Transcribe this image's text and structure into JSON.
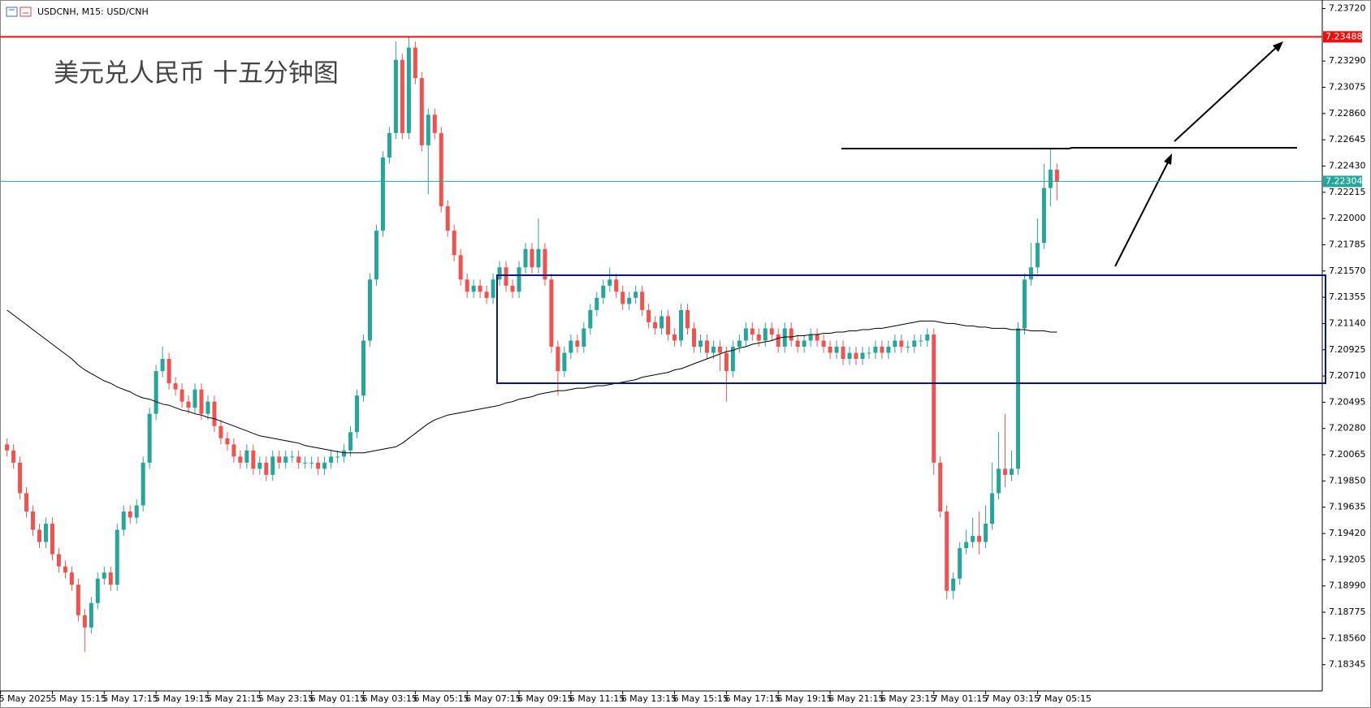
{
  "chart_data": {
    "type": "candlestick",
    "header": "USDCNH, M15:  USD/CNH",
    "title": "美元兑人民币 十五分钟图",
    "up_color": "#26a69a",
    "down_color": "#ef5350",
    "ylim": [
      7.1813,
      7.2377
    ],
    "yticks": [
      {
        "value": 7.2372,
        "label": "7.23720"
      },
      {
        "value": 7.2329,
        "label": "7.23290"
      },
      7.23075,
      {
        "value": 7.2286,
        "label": "7.22860"
      },
      7.22645,
      {
        "value": 7.2243,
        "label": "7.22430"
      },
      7.22215,
      {
        "value": 7.22,
        "label": "7.22000"
      },
      7.21785,
      {
        "value": 7.2157,
        "label": "7.21570"
      },
      7.21355,
      {
        "value": 7.2114,
        "label": "7.21140"
      },
      7.20925,
      {
        "value": 7.2071,
        "label": "7.20710"
      },
      7.20495,
      {
        "value": 7.2028,
        "label": "7.20280"
      },
      7.20065,
      {
        "value": 7.1985,
        "label": "7.19850"
      },
      7.19635,
      {
        "value": 7.1942,
        "label": "7.19420"
      },
      7.19205,
      {
        "value": 7.1899,
        "label": "7.18990"
      },
      7.18775,
      {
        "value": 7.1856,
        "label": "7.18560"
      },
      7.18345
    ],
    "hlines": [
      {
        "value": 7.23488,
        "color": "#e81010"
      },
      {
        "value": 7.22304,
        "color": "#26a69a"
      }
    ],
    "xlabels": [
      "5 May 2025",
      "5 May 15:15",
      "5 May 17:15",
      "5 May 19:15",
      "5 May 21:15",
      "5 May 23:15",
      "6 May 01:15",
      "6 May 03:15",
      "6 May 05:15",
      "6 May 07:15",
      "6 May 09:15",
      "6 May 11:15",
      "6 May 13:15",
      "6 May 15:15",
      "6 May 17:15",
      "6 May 19:15",
      "6 May 21:15",
      "6 May 23:15",
      "7 May 01:15",
      "7 May 03:15",
      "7 May 05:15"
    ],
    "open": [
      7.2015,
      7.201,
      7.2,
      7.1975,
      7.196,
      7.1945,
      7.1935,
      7.195,
      7.1925,
      7.1915,
      7.191,
      7.19,
      7.1875,
      7.1865,
      7.1885,
      7.1905,
      7.191,
      7.19,
      7.1945,
      7.196,
      7.1955,
      7.1965,
      7.2,
      7.204,
      7.2075,
      7.2085,
      7.2065,
      7.206,
      7.205,
      7.2045,
      7.206,
      7.204,
      7.205,
      7.203,
      7.202,
      7.2015,
      7.2005,
      7.2,
      7.201,
      7.1995,
      7.2,
      7.199,
      7.2005,
      7.2,
      7.2005,
      7.2005,
      7.2,
      7.2,
      7.2,
      7.1995,
      7.2,
      7.2005,
      7.2005,
      7.201,
      7.2025,
      7.2055,
      7.21,
      7.215,
      7.219,
      7.225,
      7.227,
      7.233,
      7.227,
      7.234,
      7.2315,
      7.226,
      7.2285,
      7.227,
      7.221,
      7.219,
      7.217,
      7.215,
      7.214,
      7.2145,
      7.214,
      7.2135,
      7.215,
      7.216,
      7.2145,
      7.214,
      7.216,
      7.2175,
      7.216,
      7.2175,
      7.215,
      7.2095,
      7.2075,
      7.209,
      7.21,
      7.2095,
      7.211,
      7.2125,
      7.2135,
      7.2145,
      7.215,
      7.214,
      7.213,
      7.2135,
      7.214,
      7.2125,
      7.2115,
      7.211,
      7.212,
      7.2105,
      7.21,
      7.2125,
      7.211,
      7.2095,
      7.21,
      7.209,
      7.2095,
      7.209,
      7.2075,
      7.2095,
      7.21,
      7.211,
      7.2105,
      7.21,
      7.211,
      7.2105,
      7.2095,
      7.211,
      7.21,
      7.2095,
      7.21,
      7.2105,
      7.21,
      7.2095,
      7.209,
      7.2095,
      7.2085,
      7.209,
      7.2085,
      7.209,
      7.209,
      7.2095,
      7.209,
      7.2095,
      7.21,
      7.2095,
      7.2095,
      7.21,
      7.21,
      7.2105,
      7.2,
      7.196,
      7.1895,
      7.1905,
      7.193,
      7.1935,
      7.194,
      7.1935,
      7.195,
      7.1975,
      7.1995,
      7.199,
      7.1995,
      7.211,
      7.215,
      7.216,
      7.218,
      7.2225,
      7.224
    ],
    "high": [
      7.202,
      7.2015,
      7.2005,
      7.198,
      7.1965,
      7.195,
      7.1955,
      7.1955,
      7.193,
      7.192,
      7.1915,
      7.1905,
      7.188,
      7.189,
      7.191,
      7.1915,
      7.1915,
      7.195,
      7.1965,
      7.1965,
      7.197,
      7.2005,
      7.2045,
      7.208,
      7.2095,
      7.209,
      7.207,
      7.2065,
      7.2055,
      7.2065,
      7.2065,
      7.2055,
      7.2055,
      7.2035,
      7.2025,
      7.202,
      7.201,
      7.2015,
      7.2015,
      7.2005,
      7.2005,
      7.201,
      7.201,
      7.201,
      7.201,
      7.201,
      7.2005,
      7.2005,
      7.2005,
      7.2005,
      7.201,
      7.201,
      7.2015,
      7.203,
      7.206,
      7.2105,
      7.2155,
      7.2195,
      7.2255,
      7.2275,
      7.2345,
      7.2335,
      7.2349,
      7.2345,
      7.232,
      7.229,
      7.229,
      7.2275,
      7.2215,
      7.2195,
      7.2175,
      7.2155,
      7.215,
      7.215,
      7.2145,
      7.2155,
      7.2165,
      7.2165,
      7.215,
      7.2165,
      7.218,
      7.218,
      7.22,
      7.218,
      7.2155,
      7.21,
      7.2095,
      7.2105,
      7.2105,
      7.2115,
      7.213,
      7.214,
      7.215,
      7.216,
      7.2155,
      7.2145,
      7.214,
      7.2145,
      7.2145,
      7.213,
      7.212,
      7.2125,
      7.2125,
      7.211,
      7.213,
      7.213,
      7.2115,
      7.2105,
      7.2105,
      7.21,
      7.21,
      7.2095,
      7.21,
      7.2105,
      7.2115,
      7.2115,
      7.211,
      7.2115,
      7.2115,
      7.211,
      7.2115,
      7.2115,
      7.2105,
      7.2105,
      7.211,
      7.211,
      7.2105,
      7.21,
      7.21,
      7.21,
      7.2095,
      7.2095,
      7.2095,
      7.2095,
      7.21,
      7.21,
      7.21,
      7.2105,
      7.2105,
      7.21,
      7.2105,
      7.2105,
      7.211,
      7.211,
      7.2005,
      7.1965,
      7.191,
      7.1935,
      7.1945,
      7.1955,
      7.196,
      7.1965,
      7.2,
      7.2025,
      7.204,
      7.201,
      7.2115,
      7.2155,
      7.218,
      7.22,
      7.2245,
      7.2258,
      7.2245
    ],
    "low": [
      7.2005,
      7.1995,
      7.197,
      7.1955,
      7.194,
      7.193,
      7.193,
      7.192,
      7.191,
      7.1905,
      7.1895,
      7.187,
      7.1845,
      7.186,
      7.188,
      7.19,
      7.1895,
      7.1895,
      7.194,
      7.195,
      7.195,
      7.196,
      7.1995,
      7.2035,
      7.207,
      7.206,
      7.2055,
      7.2045,
      7.204,
      7.204,
      7.2035,
      7.2035,
      7.2025,
      7.2015,
      7.201,
      7.2,
      7.1995,
      7.1995,
      7.199,
      7.199,
      7.1985,
      7.1985,
      7.1995,
      7.1995,
      7.2,
      7.1995,
      7.1995,
      7.1995,
      7.199,
      7.199,
      7.1995,
      7.2,
      7.2,
      7.2005,
      7.202,
      7.205,
      7.2095,
      7.2145,
      7.2185,
      7.2245,
      7.2265,
      7.2265,
      7.2265,
      7.231,
      7.2255,
      7.222,
      7.2265,
      7.2205,
      7.2185,
      7.2165,
      7.2145,
      7.2135,
      7.2135,
      7.2135,
      7.213,
      7.213,
      7.2145,
      7.214,
      7.2135,
      7.2135,
      7.2155,
      7.2155,
      7.2155,
      7.2145,
      7.209,
      7.2055,
      7.207,
      7.2085,
      7.209,
      7.209,
      7.2105,
      7.212,
      7.213,
      7.214,
      7.2135,
      7.2125,
      7.2125,
      7.213,
      7.212,
      7.211,
      7.2105,
      7.2105,
      7.21,
      7.2095,
      7.2095,
      7.2105,
      7.209,
      7.209,
      7.2085,
      7.2085,
      7.2075,
      7.205,
      7.207,
      7.209,
      7.2095,
      7.21,
      7.2095,
      7.2095,
      7.21,
      7.209,
      7.209,
      7.2095,
      7.209,
      7.209,
      7.2095,
      7.2095,
      7.209,
      7.2085,
      7.2085,
      7.208,
      7.208,
      7.208,
      7.208,
      7.2085,
      7.2085,
      7.2085,
      7.2085,
      7.209,
      7.209,
      7.209,
      7.209,
      7.2095,
      7.2095,
      7.199,
      7.1955,
      7.1888,
      7.1888,
      7.19,
      7.1925,
      7.193,
      7.1925,
      7.193,
      7.1945,
      7.197,
      7.198,
      7.1985,
      7.199,
      7.2105,
      7.2145,
      7.2155,
      7.2175,
      7.221,
      7.2215
    ],
    "close": [
      7.201,
      7.2,
      7.1975,
      7.196,
      7.1945,
      7.1935,
      7.195,
      7.1925,
      7.1915,
      7.191,
      7.19,
      7.1875,
      7.1865,
      7.1885,
      7.1905,
      7.191,
      7.19,
      7.1945,
      7.196,
      7.1955,
      7.1965,
      7.2,
      7.204,
      7.2075,
      7.2085,
      7.2065,
      7.206,
      7.205,
      7.2045,
      7.206,
      7.204,
      7.205,
      7.203,
      7.202,
      7.2015,
      7.2005,
      7.2,
      7.201,
      7.1995,
      7.2,
      7.199,
      7.2005,
      7.2,
      7.2005,
      7.2005,
      7.2,
      7.2,
      7.2,
      7.1995,
      7.2,
      7.2005,
      7.2005,
      7.201,
      7.2025,
      7.2055,
      7.21,
      7.215,
      7.219,
      7.225,
      7.227,
      7.233,
      7.227,
      7.234,
      7.2315,
      7.226,
      7.2285,
      7.227,
      7.221,
      7.219,
      7.217,
      7.215,
      7.214,
      7.2145,
      7.214,
      7.2135,
      7.215,
      7.216,
      7.2145,
      7.214,
      7.216,
      7.2175,
      7.216,
      7.2175,
      7.215,
      7.2095,
      7.2075,
      7.209,
      7.21,
      7.2095,
      7.211,
      7.2125,
      7.2135,
      7.2145,
      7.215,
      7.214,
      7.213,
      7.2135,
      7.214,
      7.2125,
      7.2115,
      7.211,
      7.212,
      7.2105,
      7.21,
      7.2125,
      7.211,
      7.2095,
      7.21,
      7.209,
      7.2095,
      7.209,
      7.2075,
      7.2095,
      7.21,
      7.211,
      7.2105,
      7.21,
      7.211,
      7.2105,
      7.2095,
      7.211,
      7.21,
      7.2095,
      7.21,
      7.2105,
      7.21,
      7.2095,
      7.209,
      7.2095,
      7.2085,
      7.209,
      7.2085,
      7.209,
      7.209,
      7.2095,
      7.209,
      7.2095,
      7.21,
      7.2095,
      7.2095,
      7.21,
      7.21,
      7.2105,
      7.2,
      7.196,
      7.1895,
      7.1905,
      7.193,
      7.1935,
      7.194,
      7.1935,
      7.195,
      7.1975,
      7.1995,
      7.199,
      7.1995,
      7.211,
      7.215,
      7.216,
      7.218,
      7.2225,
      7.224,
      7.223
    ],
    "ma": {
      "color": "#000000",
      "values": [
        7.2125,
        7.2121,
        7.2117,
        7.2113,
        7.2109,
        7.2105,
        7.2101,
        7.2097,
        7.2093,
        7.2089,
        7.2085,
        7.208,
        7.2076,
        7.2073,
        7.207,
        7.2067,
        7.2065,
        7.2062,
        7.206,
        7.2058,
        7.2055,
        7.2053,
        7.2052,
        7.205,
        7.2048,
        7.2047,
        7.2045,
        7.2043,
        7.2042,
        7.204,
        7.2039,
        7.2037,
        7.2036,
        7.2034,
        7.2032,
        7.203,
        7.2028,
        7.2026,
        7.2024,
        7.2022,
        7.2021,
        7.202,
        7.2019,
        7.2018,
        7.2017,
        7.2016,
        7.2014,
        7.2013,
        7.2012,
        7.2011,
        7.201,
        7.2009,
        7.2008,
        7.2008,
        7.2008,
        7.2008,
        7.2009,
        7.201,
        7.2011,
        7.2012,
        7.2013,
        7.2016,
        7.202,
        7.2024,
        7.2028,
        7.2032,
        7.2035,
        7.2037,
        7.2039,
        7.204,
        7.2041,
        7.2042,
        7.2043,
        7.2044,
        7.2045,
        7.2046,
        7.2047,
        7.2049,
        7.205,
        7.2052,
        7.2053,
        7.2054,
        7.2056,
        7.2057,
        7.2058,
        7.2059,
        7.2059,
        7.206,
        7.2061,
        7.2061,
        7.2062,
        7.2063,
        7.2063,
        7.2064,
        7.2065,
        7.2066,
        7.2067,
        7.2068,
        7.207,
        7.2071,
        7.2072,
        7.2073,
        7.2074,
        7.2076,
        7.2077,
        7.2079,
        7.2081,
        7.2083,
        7.2085,
        7.2087,
        7.2089,
        7.2091,
        7.2092,
        7.2094,
        7.2095,
        7.2097,
        7.2098,
        7.2099,
        7.21,
        7.2102,
        7.2103,
        7.2103,
        7.2104,
        7.2104,
        7.2105,
        7.2105,
        7.2106,
        7.2106,
        7.2107,
        7.2107,
        7.2108,
        7.2108,
        7.2109,
        7.2109,
        7.211,
        7.211,
        7.2111,
        7.2112,
        7.2113,
        7.2114,
        7.2115,
        7.2116,
        7.2116,
        7.2116,
        7.2115,
        7.2114,
        7.2114,
        7.2113,
        7.2112,
        7.2112,
        7.2111,
        7.2111,
        7.211,
        7.211,
        7.211,
        7.2109,
        7.2109,
        7.2109,
        7.2108,
        7.2108,
        7.2108,
        7.2107,
        7.2107
      ]
    }
  }
}
